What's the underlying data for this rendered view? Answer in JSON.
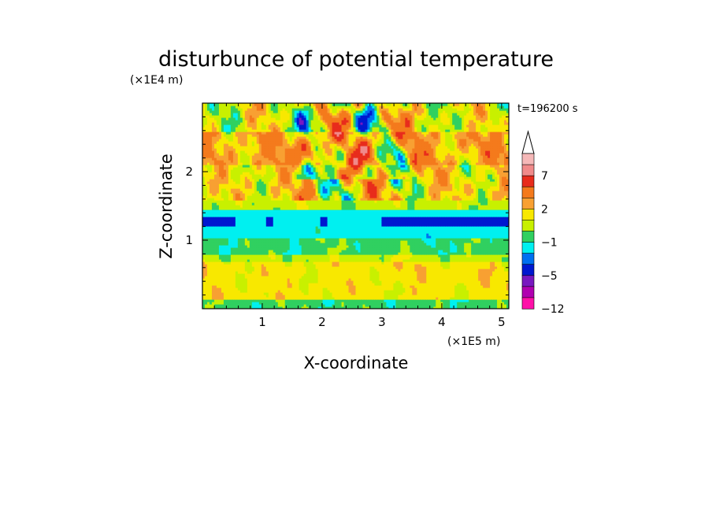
{
  "chart_data": {
    "type": "heatmap",
    "title": "disturbunce of potential temperature",
    "xlabel": "X-coordinate",
    "ylabel": "Z-coordinate",
    "x_unit": "(×1E5 m)",
    "y_unit": "(×1E4 m)",
    "time_label": "t=196200 s",
    "xlim": [
      0,
      5.12
    ],
    "ylim": [
      0,
      3.0
    ],
    "x_ticks": [
      "1",
      "2",
      "3",
      "4",
      "5"
    ],
    "x_tick_values": [
      1,
      2,
      3,
      4,
      5
    ],
    "y_ticks": [
      "1",
      "2"
    ],
    "y_tick_values": [
      1,
      2
    ],
    "colorbar": {
      "labels": [
        "7",
        "2",
        "−1",
        "−5",
        "−12"
      ],
      "label_values": [
        7,
        2,
        -1,
        -5,
        -12
      ],
      "extend_top": true,
      "levels": [
        {
          "min": 9,
          "max": 11,
          "color": "#f5b8b8"
        },
        {
          "min": 7,
          "max": 9,
          "color": "#f08a8a"
        },
        {
          "min": 5,
          "max": 7,
          "color": "#e82c1c"
        },
        {
          "min": 3,
          "max": 5,
          "color": "#f47a1c"
        },
        {
          "min": 2,
          "max": 3,
          "color": "#f8a032"
        },
        {
          "min": 1,
          "max": 2,
          "color": "#f8e800"
        },
        {
          "min": 0,
          "max": 1,
          "color": "#c8f000"
        },
        {
          "min": -1,
          "max": 0,
          "color": "#30d060"
        },
        {
          "min": -2,
          "max": -1,
          "color": "#00f0f0"
        },
        {
          "min": -3,
          "max": -2,
          "color": "#0070f0"
        },
        {
          "min": -5,
          "max": -3,
          "color": "#0018d0"
        },
        {
          "min": -7,
          "max": -5,
          "color": "#7818c0"
        },
        {
          "min": -9,
          "max": -7,
          "color": "#b000b0"
        },
        {
          "min": -12,
          "max": -9,
          "color": "#ff10a8"
        }
      ]
    },
    "field_description_values": {
      "layers": [
        {
          "z_from": 0.0,
          "z_to": 0.15,
          "value": -0.5
        },
        {
          "z_from": 0.15,
          "z_to": 0.7,
          "value": 1.5
        },
        {
          "z_from": 0.7,
          "z_to": 0.8,
          "value": 0.5
        },
        {
          "z_from": 0.8,
          "z_to": 1.05,
          "value": -0.5
        },
        {
          "z_from": 1.05,
          "z_to": 1.45,
          "value": -1.5
        },
        {
          "z_from": 1.45,
          "z_to": 1.6,
          "value": 0.5
        },
        {
          "z_from": 1.6,
          "z_to": 2.1,
          "value": 1.5
        },
        {
          "z_from": 2.1,
          "z_to": 2.6,
          "value": 2.5
        },
        {
          "z_from": 2.6,
          "z_to": 3.0,
          "value": 1.0
        }
      ]
    }
  }
}
